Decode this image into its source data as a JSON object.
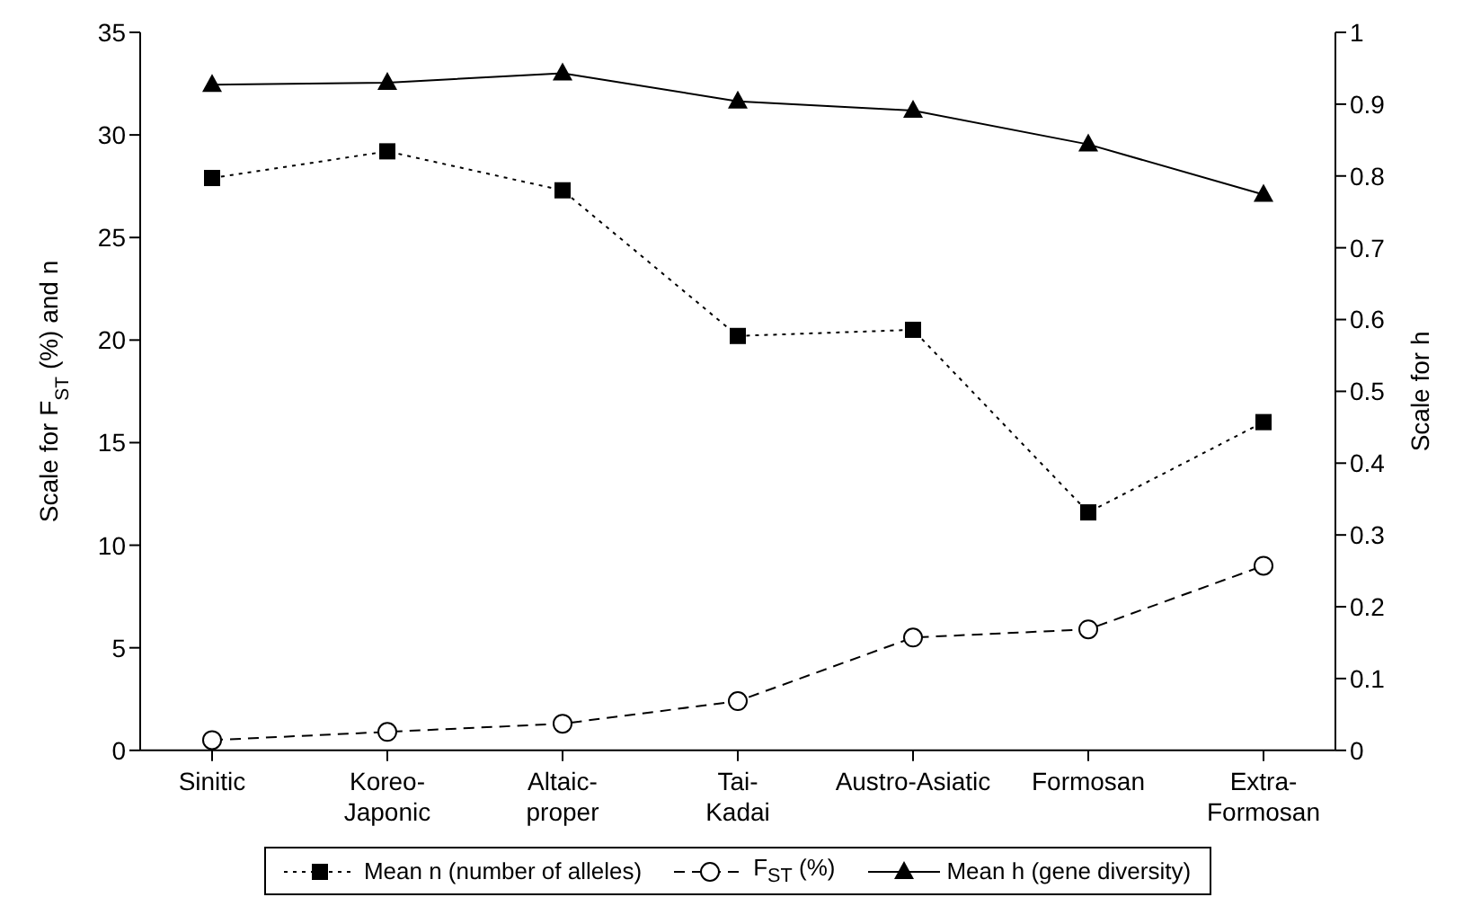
{
  "chart_data": {
    "type": "line",
    "categories": [
      "Sinitic",
      "Koreo-\nJaponic",
      "Altaic-\nproper",
      "Tai-\nKadai",
      "Austro-Asiatic",
      "Formosan",
      "Extra-\nFormosan"
    ],
    "ylabel": "Scale for F$_{ST}$ (%) and n",
    "y2label": "Scale for h",
    "ylim": [
      0,
      35
    ],
    "yticks": [
      0,
      5,
      10,
      15,
      20,
      25,
      30,
      35
    ],
    "y2lim": [
      0,
      1
    ],
    "y2ticks": [
      0,
      0.1,
      0.2,
      0.3,
      0.4,
      0.5,
      0.6,
      0.7,
      0.8,
      0.9,
      1
    ],
    "grid": false,
    "legend": "bottom",
    "series": [
      {
        "name": "Mean n (number of alleles)",
        "color": "#000000",
        "marker": "square",
        "line_style": "dotted",
        "values": [
          27.9,
          29.2,
          27.3,
          20.2,
          20.5,
          11.6,
          16.0
        ]
      },
      {
        "name": "F$_{ST}$ (%)",
        "color": "#000000",
        "marker": "circle",
        "line_style": "dashed",
        "values": [
          0.5,
          0.9,
          1.3,
          2.4,
          5.5,
          5.9,
          9.0
        ]
      },
      {
        "name": "Mean h (gene diversity)",
        "color": "#000000",
        "marker": "triangle",
        "line_style": "solid",
        "axis": "y2",
        "values": [
          0.927,
          0.93,
          0.943,
          0.904,
          0.891,
          0.844,
          0.774
        ]
      }
    ]
  }
}
